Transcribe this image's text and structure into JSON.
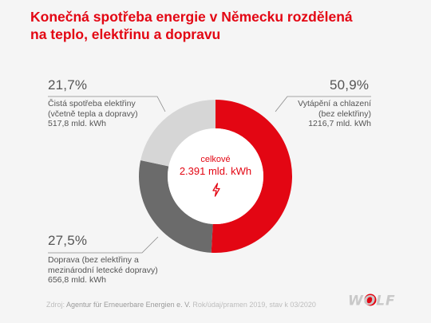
{
  "title_line1": "Konečná spotřeba energie v Německu rozdělená",
  "title_line2": "na teplo, elektřinu a dopravu",
  "center": {
    "label": "celkové",
    "value": "2.391 mld. kWh"
  },
  "segments": {
    "heat": {
      "pct": "50,9%",
      "line1": "Vytápění a chlazení",
      "line2": "(bez elektřiny)",
      "line3": "1216,7 mld. kWh"
    },
    "transport": {
      "pct": "27,5%",
      "line1": "Doprava (bez elektřiny a",
      "line2": "mezinárodní letecké dopravy)",
      "line3": "656,8 mld. kWh"
    },
    "electricity": {
      "pct": "21,7%",
      "line1": "Čistá spotřeba elektřiny",
      "line2": "(včetně tepla a dopravy)",
      "line3": "517,8 mld. kWh"
    }
  },
  "footer": {
    "prefix": "Zdroj:",
    "source": "Agentur für Erneuerbare Energien e. V.",
    "note": "Rok/údaj/pramen 2019, stav k 03/2020"
  },
  "logo": "WOLF",
  "icons": {
    "center": "lightning-bolt-icon"
  },
  "colors": {
    "title": "#e30613",
    "heat": "#e30613",
    "transport": "#6b6b6b",
    "electricity": "#d6d6d6",
    "background": "#f5f5f5"
  },
  "chart_data": {
    "type": "pie",
    "title": "Konečná spotřeba energie v Německu rozdělená na teplo, elektřinu a dopravu",
    "unit": "mld. kWh",
    "total": 2391,
    "categories": [
      "Vytápění a chlazení (bez elektřiny)",
      "Doprava (bez elektřiny a mezinárodní letecké dopravy)",
      "Čistá spotřeba elektřiny (včetně tepla a dopravy)"
    ],
    "values": [
      1216.7,
      656.8,
      517.8
    ],
    "percentages": [
      50.9,
      27.5,
      21.7
    ],
    "colors": [
      "#e30613",
      "#6b6b6b",
      "#d6d6d6"
    ]
  }
}
